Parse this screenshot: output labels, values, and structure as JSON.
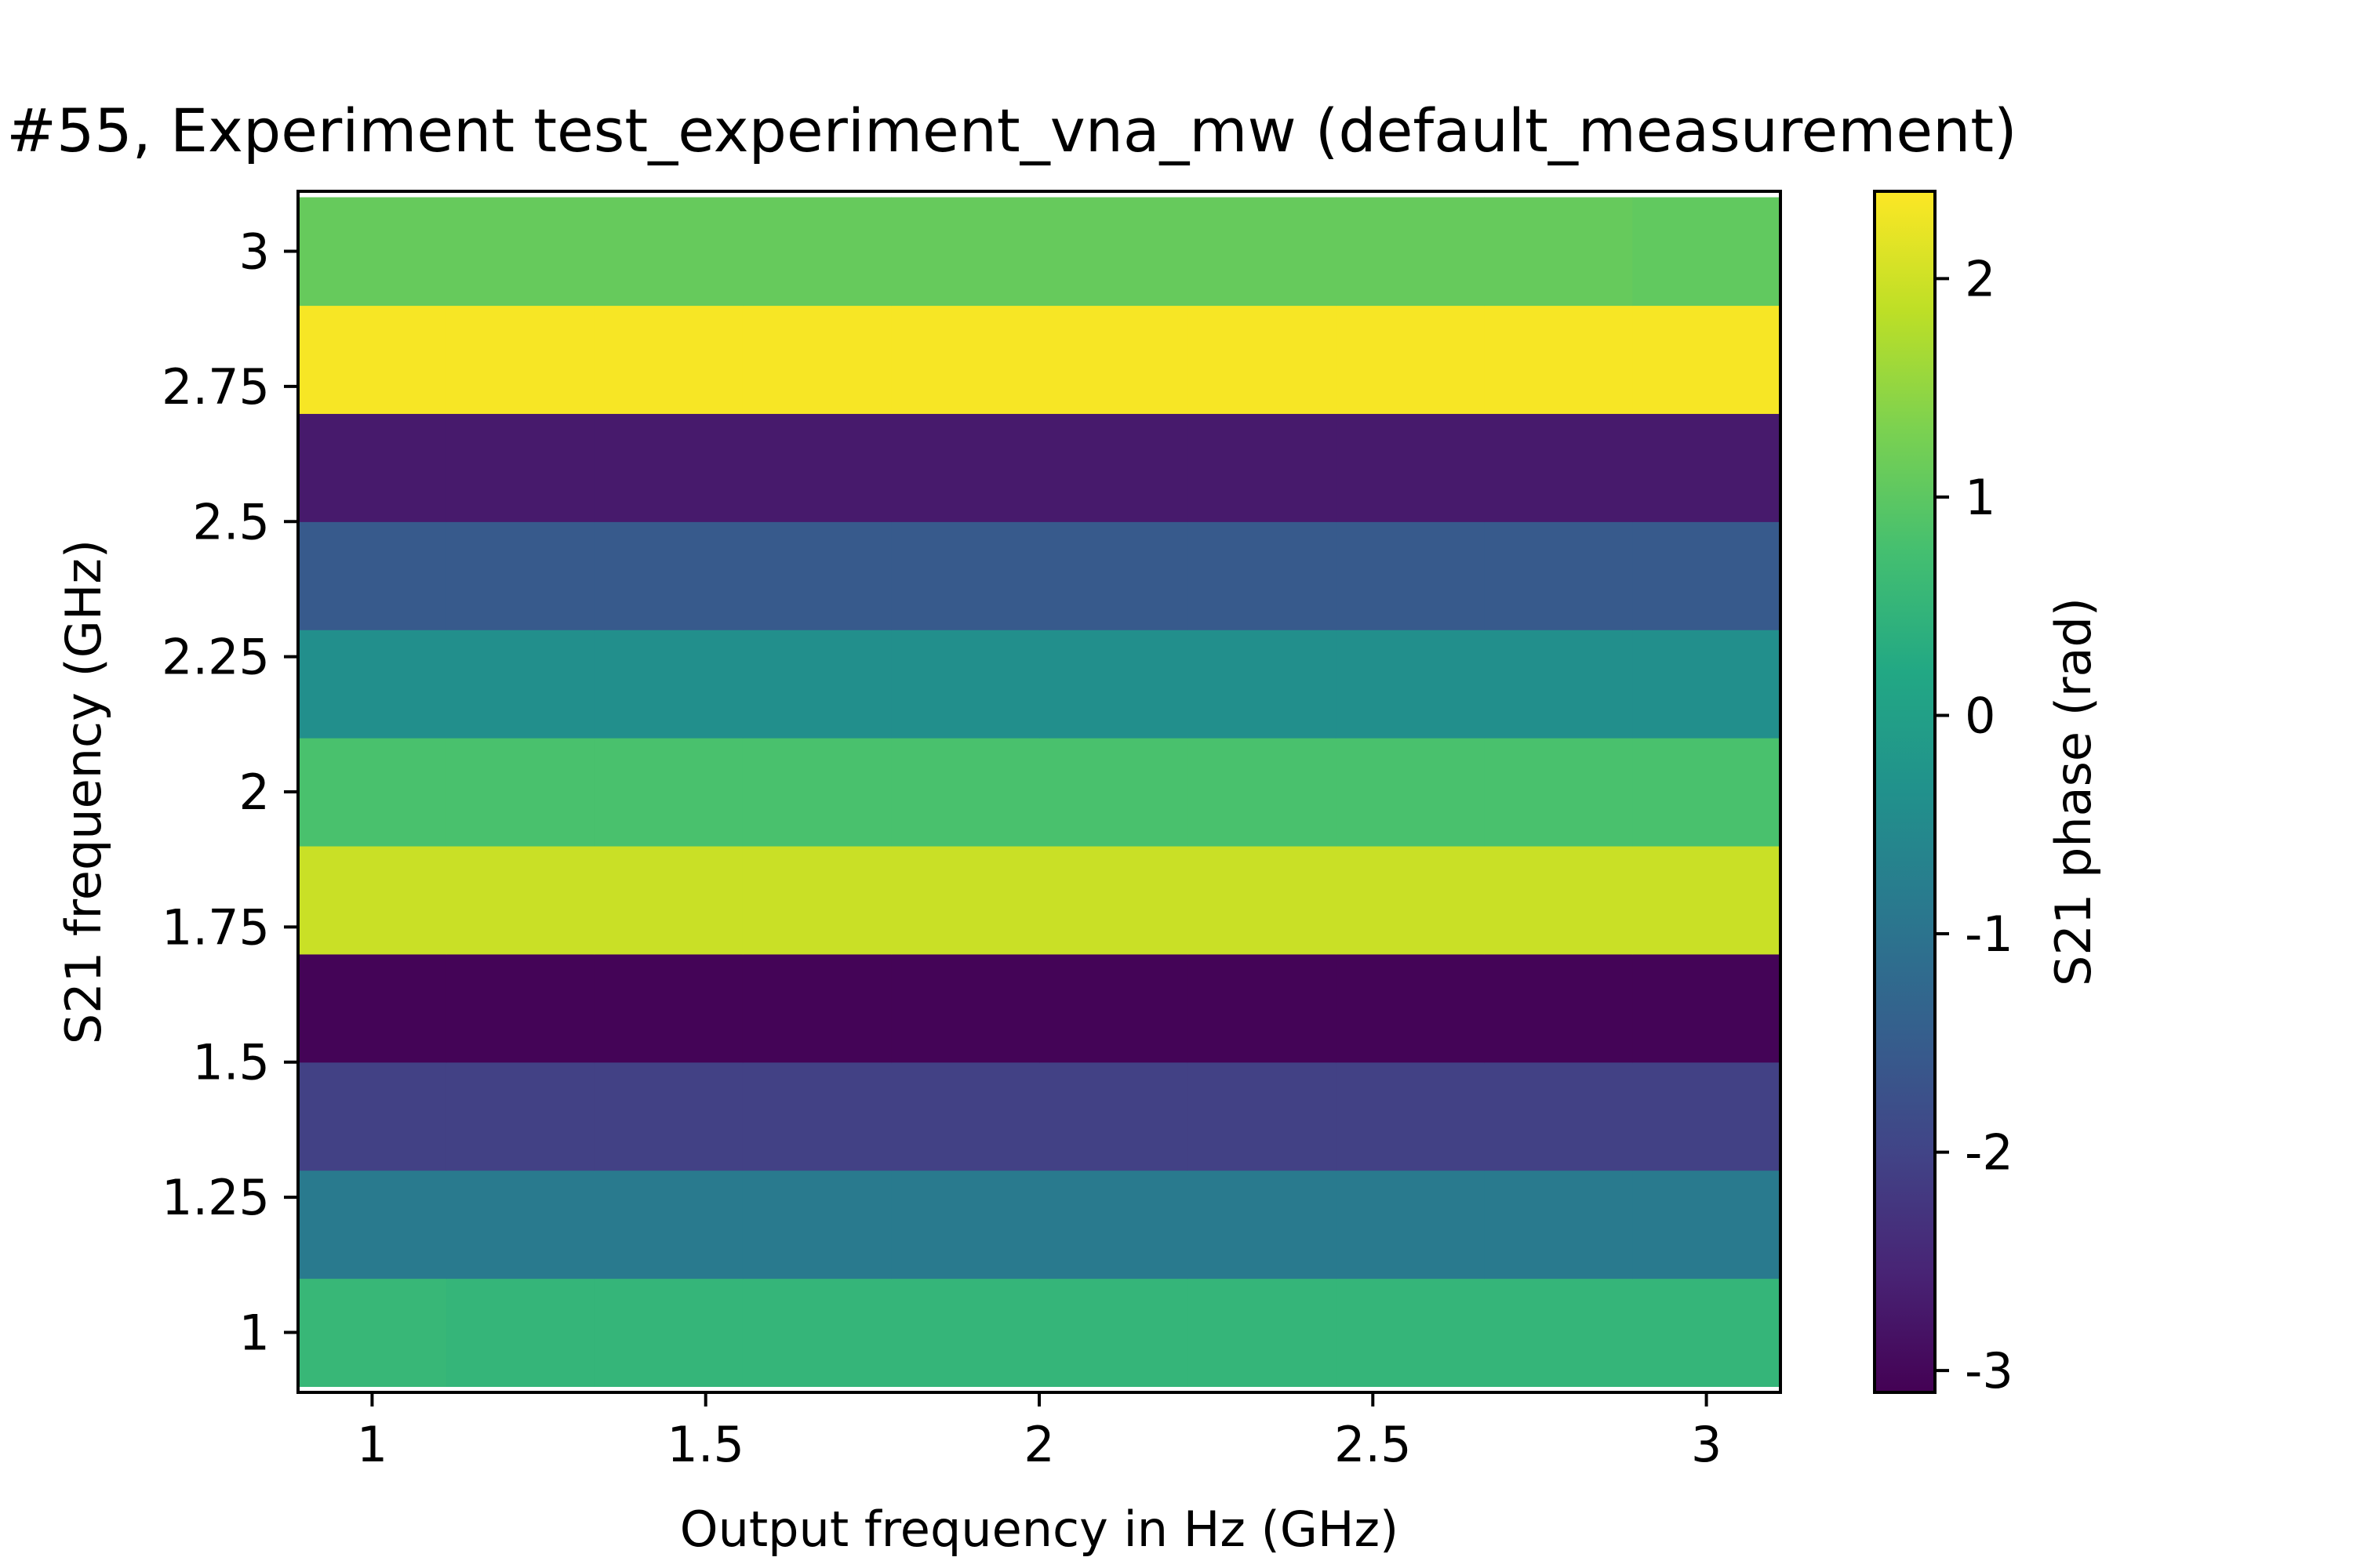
{
  "chart_data": {
    "type": "heatmap",
    "title": "#55, Experiment test_experiment_vna_mw (default_measurement)",
    "xlabel": "Output frequency in Hz (GHz)",
    "ylabel": "S21 frequency (GHz)",
    "colorbar_label": "S21 phase (rad)",
    "colormap": "viridis",
    "xlim": [
      0.889,
      3.111
    ],
    "ylim": [
      0.889,
      3.111
    ],
    "clim": [
      -3.1,
      2.4
    ],
    "x_ticks": [
      1,
      1.5,
      2,
      2.5,
      3
    ],
    "x_tick_labels": [
      "1",
      "1.5",
      "2",
      "2.5",
      "3"
    ],
    "y_ticks": [
      1,
      1.25,
      1.5,
      1.75,
      2,
      2.25,
      2.5,
      2.75,
      3
    ],
    "y_tick_labels": [
      "1",
      "1.25",
      "1.5",
      "1.75",
      "2",
      "2.25",
      "2.5",
      "2.75",
      "3"
    ],
    "colorbar_ticks": [
      2,
      1,
      0,
      -1,
      -2,
      -3
    ],
    "colorbar_tick_labels": [
      "2",
      "1",
      "0",
      "-1",
      "-2",
      "-3"
    ],
    "x": [
      1.0,
      1.222,
      1.444,
      1.667,
      1.889,
      2.111,
      2.333,
      2.556,
      2.778,
      3.0
    ],
    "y": [
      1.0,
      1.2,
      1.4,
      1.6,
      1.8,
      2.0,
      2.2,
      2.4,
      2.6,
      2.8,
      3.0
    ],
    "z": [
      [
        0.55,
        0.5,
        0.5,
        0.5,
        0.5,
        0.5,
        0.5,
        0.5,
        0.5,
        0.5
      ],
      [
        -0.85,
        -0.85,
        -0.85,
        -0.85,
        -0.85,
        -0.85,
        -0.85,
        -0.85,
        -0.85,
        -0.85
      ],
      [
        -2.05,
        -2.05,
        -2.05,
        -2.05,
        -2.05,
        -2.05,
        -2.05,
        -2.05,
        -2.05,
        -2.05
      ],
      [
        -3.05,
        -3.05,
        -3.05,
        -3.05,
        -3.05,
        -3.05,
        -3.05,
        -3.05,
        -3.05,
        -3.05
      ],
      [
        1.95,
        1.95,
        1.95,
        1.95,
        1.95,
        1.95,
        1.95,
        1.95,
        1.95,
        1.95
      ],
      [
        0.8,
        0.8,
        0.8,
        0.8,
        0.8,
        0.8,
        0.8,
        0.8,
        0.8,
        0.8
      ],
      [
        -0.4,
        -0.4,
        -0.4,
        -0.4,
        -0.4,
        -0.4,
        -0.4,
        -0.4,
        -0.4,
        -0.4
      ],
      [
        -1.55,
        -1.55,
        -1.55,
        -1.55,
        -1.55,
        -1.55,
        -1.55,
        -1.55,
        -1.55,
        -1.55
      ],
      [
        -2.7,
        -2.7,
        -2.7,
        -2.7,
        -2.7,
        -2.7,
        -2.7,
        -2.7,
        -2.7,
        -2.7
      ],
      [
        2.35,
        2.35,
        2.35,
        2.35,
        2.35,
        2.35,
        2.35,
        2.35,
        2.35,
        2.35
      ],
      [
        1.1,
        1.1,
        1.1,
        1.1,
        1.1,
        1.1,
        1.1,
        1.1,
        1.1,
        1.05
      ]
    ]
  }
}
